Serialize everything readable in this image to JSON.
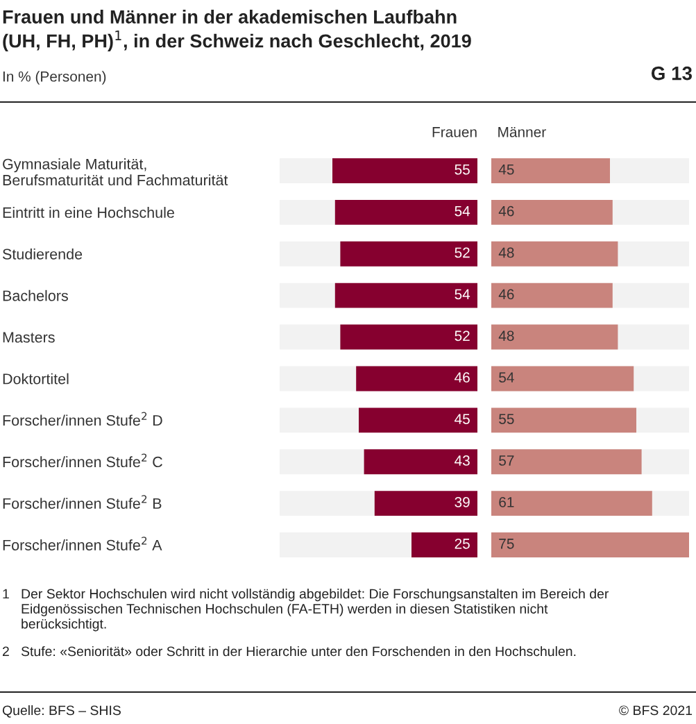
{
  "chart_data": [
    {
      "type": "bar",
      "orientation": "horizontal",
      "title": "Frauen und Männer in der akademischen Laufbahn\n(UH, FH, PH)$^{1}$, in der Schweiz nach Geschlecht, 2019",
      "subtitle": "In % (Personen)",
      "categories": [
        "Gymnasiale Maturität,\nBerufsmaturität und Fachmaturität",
        "Eintritt in eine Hochschule",
        "Studierende",
        "Bachelors",
        "Masters",
        "Doktortitel",
        "Forscher/innen Stufe$^{2}$ D",
        "Forscher/innen Stufe$^{2}$ C",
        "Forscher/innen Stufe$^{2}$ B",
        "Forscher/innen Stufe$^{2}$ A"
      ],
      "series": [
        {
          "name": "Frauen",
          "color": "#86002f",
          "values": [
            55,
            54,
            52,
            54,
            52,
            46,
            45,
            43,
            39,
            25
          ]
        }
      ],
      "xlim": [
        75,
        0
      ],
      "data_labels": true,
      "tick_labels": "y",
      "legend": false,
      "annotations": [
        "G 13",
        "1   Der Sektor Hochschulen wird nicht vollständig abgebildet: Die Forschungsanstalten im Bereich der\n     Eidgenössischen Technischen Hochschulen (FA-ETH) werden in diesen Statistiken nicht\n     berücksichtigt.",
        "2   Stufe: «Seniorität» oder Schritt in der Hierarchie unter den Forschenden in den Hochschulen.",
        "Quelle: BFS – SHIS",
        "© BFS 2021"
      ]
    },
    {
      "type": "bar",
      "orientation": "horizontal",
      "categories": [
        null,
        null,
        null,
        null,
        null,
        null,
        null,
        null,
        null,
        null
      ],
      "series": [
        {
          "name": "Männer",
          "color": "#c9847d",
          "values": [
            45,
            46,
            48,
            46,
            48,
            54,
            55,
            57,
            61,
            75
          ]
        }
      ],
      "xlim": [
        0,
        75
      ],
      "data_labels": true,
      "tick_labels": false,
      "legend": false
    }
  ]
}
